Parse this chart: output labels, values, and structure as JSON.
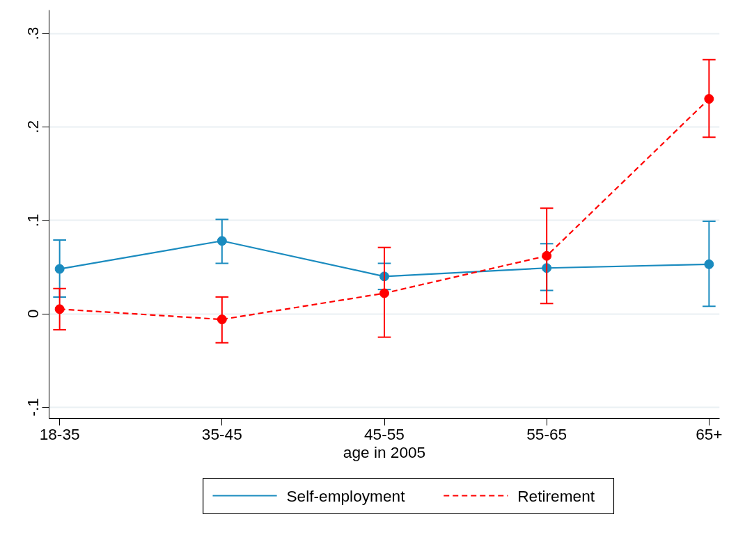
{
  "chart_data": {
    "type": "line",
    "xlabel": "age in 2005",
    "categories": [
      "18-35",
      "35-45",
      "45-55",
      "55-65",
      "65+"
    ],
    "series": [
      {
        "name": "Self-employment",
        "color": "#1a8bbf",
        "line_style": "solid",
        "values": [
          0.048,
          0.078,
          0.04,
          0.049,
          0.053
        ],
        "errors": [
          [
            0.018,
            0.079
          ],
          [
            0.054,
            0.101
          ],
          [
            0.026,
            0.054
          ],
          [
            0.025,
            0.075
          ],
          [
            0.008,
            0.099
          ]
        ]
      },
      {
        "name": "Retirement",
        "color": "#ff0000",
        "line_style": "dashed",
        "values": [
          0.005,
          -0.006,
          0.022,
          0.062,
          0.23
        ],
        "errors": [
          [
            -0.017,
            0.027
          ],
          [
            -0.031,
            0.018
          ],
          [
            -0.025,
            0.071
          ],
          [
            0.011,
            0.113
          ],
          [
            0.189,
            0.272
          ]
        ]
      }
    ],
    "ylim": [
      -0.112,
      0.325
    ],
    "yticks": [
      {
        "value": -0.1,
        "label": "-.1"
      },
      {
        "value": 0,
        "label": "0"
      },
      {
        "value": 0.1,
        "label": ".1"
      },
      {
        "value": 0.2,
        "label": ".2"
      },
      {
        "value": 0.3,
        "label": ".3"
      }
    ],
    "grid": "y",
    "legend": "bottom",
    "marker": "circle"
  }
}
